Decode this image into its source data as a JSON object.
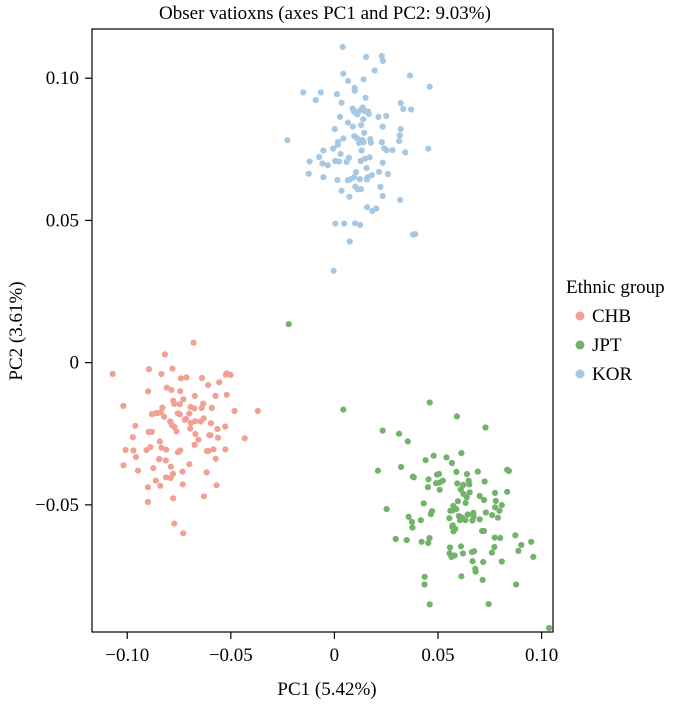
{
  "chart_data": {
    "type": "scatter",
    "title": "Obser vatioxns (axes PC1 and PC2: 9.03%)",
    "xlabel": "PC1 (5.42%)",
    "ylabel": "PC2 (3.61%)",
    "xlim": [
      -0.117,
      0.1055
    ],
    "ylim": [
      -0.0947,
      0.1173
    ],
    "xticks": [
      -0.1,
      -0.05,
      0,
      0.05,
      0.1
    ],
    "xtick_labels": [
      "−0.10",
      "−0.05",
      "0",
      "0.05",
      "0.10"
    ],
    "yticks": [
      -0.05,
      0,
      0.05,
      0.1
    ],
    "ytick_labels": [
      "−0.05",
      "0",
      "0.05",
      "0.10"
    ],
    "legend_title": "Ethnic group",
    "legend_position": "right",
    "grid": false,
    "series": [
      {
        "name": "CHB",
        "color": "#f0a095",
        "points": []
      },
      {
        "name": "JPT",
        "color": "#72b26a",
        "points": []
      },
      {
        "name": "KOR",
        "color": "#a8c8e2",
        "points": []
      }
    ]
  }
}
